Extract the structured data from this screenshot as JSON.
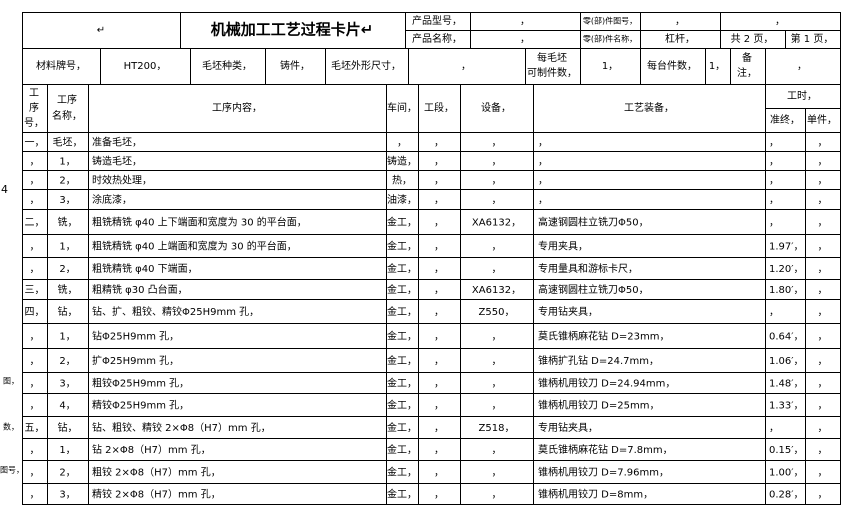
{
  "header": {
    "cells": [
      "↵",
      "机械加工工艺过程卡片↵",
      "产品型号，",
      "，",
      "零(部)件图号，",
      "，",
      "，",
      "产品名称，",
      "，",
      "零(部)件名称，",
      "杠杆，",
      "共 2 页，",
      "第 1 页，",
      "材料牌号，",
      "HT200，",
      "毛坯种类，",
      "铸件，",
      "毛坯外形尺寸，",
      "，",
      "每毛坯",
      "可制件数，",
      "1，",
      "每台件数，",
      "1，",
      "备",
      "注，",
      "，"
    ]
  },
  "table": {
    "columns": [
      [
        "工",
        "序",
        "号，"
      ],
      [
        "工序",
        "名称，"
      ],
      [
        "工序内容，"
      ],
      [
        "车间，"
      ],
      [
        "工段，"
      ],
      [
        "设备，"
      ],
      [
        "工艺装备，"
      ],
      [
        "工时，"
      ],
      [
        "准终，"
      ],
      [
        "单件，"
      ]
    ],
    "rows": [
      [
        "一，",
        "毛坯，",
        "准备毛坯，",
        "，",
        "，",
        "，",
        "，",
        "，",
        "，"
      ],
      [
        "，",
        "1，",
        "铸造毛坯，",
        "铸造，",
        "，",
        "，",
        "，",
        "，",
        "，"
      ],
      [
        "，",
        "2，",
        "时效热处理，",
        "热，",
        "，",
        "，",
        "，",
        "，",
        "，"
      ],
      [
        "，",
        "3，",
        "涂底漆，",
        "油漆，",
        "，",
        "，",
        "，",
        "，",
        "，"
      ],
      [
        "二，",
        "铣，",
        "粗铣精铣 φ40 上下端面和宽度为 30 的平台面，",
        "金工，",
        "，",
        "XA6132，",
        "高速钢圆柱立铣刀Φ50，",
        "，",
        "，"
      ],
      [
        "，",
        "1，",
        "粗铣精铣 φ40 上端面和宽度为 30 的平台面，",
        "金工，",
        "，",
        "，",
        "专用夹具，",
        "1.97′，",
        "，"
      ],
      [
        "，",
        "2，",
        "粗铣精铣 φ40 下端面，",
        "金工，",
        "，",
        "，",
        "专用量具和游标卡尺，",
        "1.20′，",
        "，"
      ],
      [
        "三，",
        "铣，",
        "粗精铣 φ30 凸台面，",
        "金工，",
        "，",
        "XA6132，",
        "高速钢圆柱立铣刀Φ50，",
        "1.80′，",
        "，"
      ],
      [
        "四，",
        "钻，",
        "钻、扩、粗铰、精铰Φ25H9mm 孔，",
        "金工，",
        "，",
        "Z550，",
        "专用钻夹具，",
        "，",
        "，"
      ],
      [
        "，",
        "1，",
        "钻Φ25H9mm 孔，",
        "金工，",
        "，",
        "，",
        "莫氏锥柄麻花钻 D=23mm，",
        "0.64′，",
        "，"
      ],
      [
        "，",
        "2，",
        "扩Φ25H9mm 孔，",
        "金工，",
        "，",
        "，",
        "锥柄扩孔钻 D=24.7mm，",
        "1.06′，",
        "，"
      ],
      [
        "，",
        "3，",
        "粗铰Φ25H9mm 孔，",
        "金工，",
        "，",
        "，",
        "锥柄机用铰刀 D=24.94mm，",
        "1.48′，",
        "，"
      ],
      [
        "，",
        "4，",
        "精铰Φ25H9mm 孔，",
        "金工，",
        "，",
        "，",
        "锥柄机用铰刀 D=25mm，",
        "1.33′，",
        "，"
      ],
      [
        "五，",
        "钻，",
        "钻、粗铰、精铰 2×Φ8（H7）mm 孔，",
        "金工，",
        "，",
        "Z518，",
        "专用钻夹具，",
        "，",
        "，"
      ],
      [
        "，",
        "1，",
        "钻 2×Φ8（H7）mm 孔，",
        "金工，",
        "，",
        "，",
        "莫氏锥柄麻花钻 D=7.8mm，",
        "0.15′，",
        "，"
      ],
      [
        "，",
        "2，",
        "粗铰 2×Φ8（H7）mm 孔，",
        "金工，",
        "，",
        "，",
        "锥柄机用铰刀 D=7.96mm，",
        "1.00′，",
        "，"
      ],
      [
        "，",
        "3，",
        "精铰 2×Φ8（H7）mm 孔，",
        "金工，",
        "，",
        "，",
        "锥柄机用铰刀 D=8mm，",
        "0.28′，",
        "，"
      ]
    ]
  },
  "margin_notes": [
    "4",
    "图，",
    "数，",
    "图号，"
  ]
}
